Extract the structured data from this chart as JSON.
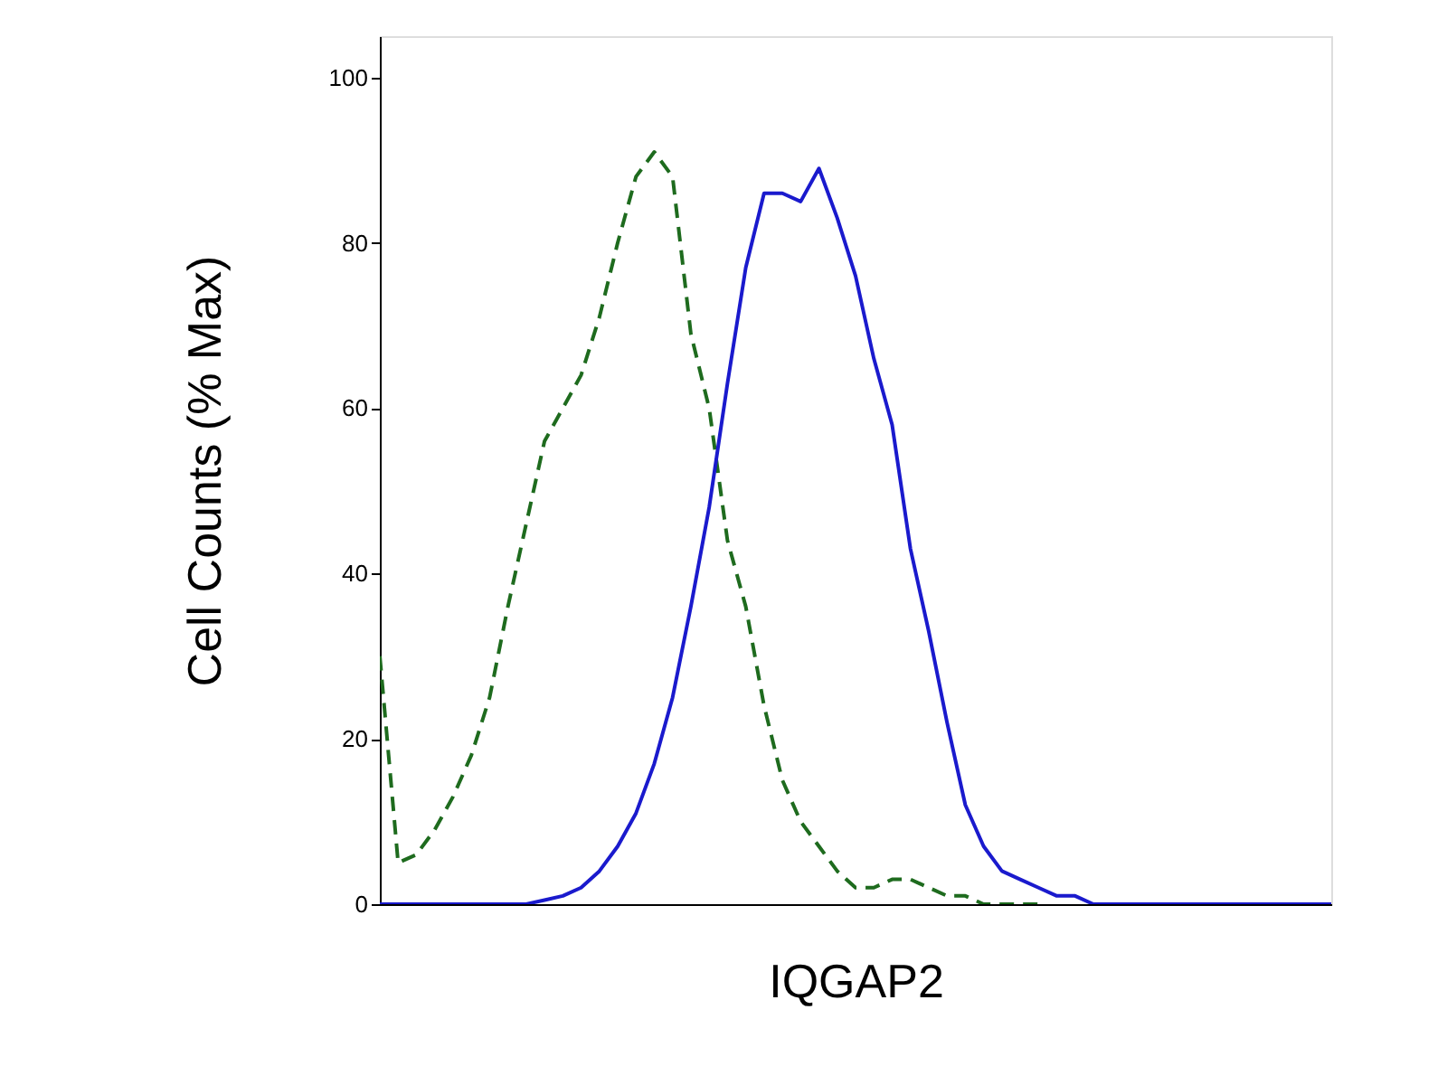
{
  "chart_data": {
    "type": "line",
    "xlabel": "IQGAP2",
    "ylabel": "Cell Counts (% Max)",
    "categories": [
      null,
      null,
      null,
      null,
      null,
      null,
      null,
      null,
      null,
      null,
      null,
      null,
      null,
      null,
      null,
      null,
      null,
      null,
      null,
      null,
      null,
      null,
      null,
      null,
      null,
      null,
      null,
      null,
      null,
      null,
      null,
      null,
      null,
      null,
      null,
      null,
      null,
      null,
      null,
      null,
      null,
      null,
      null,
      null,
      null,
      null,
      null,
      null,
      null,
      null,
      null,
      null,
      null
    ],
    "series": [
      {
        "color": "#1e6b1e",
        "line_style": "dashed",
        "values": [
          30,
          5,
          6,
          9,
          13,
          18,
          25,
          36,
          46,
          56,
          60,
          64,
          71,
          80,
          88,
          91,
          88,
          69,
          60,
          44,
          36,
          24,
          15,
          10,
          7,
          4,
          2,
          2,
          3,
          3,
          2,
          1,
          1,
          0,
          0,
          0,
          0,
          null,
          null,
          null,
          null,
          null,
          null,
          null,
          null,
          null,
          null,
          null,
          null,
          null,
          null,
          null,
          null
        ]
      },
      {
        "color": "#1a1acd",
        "line_style": "solid",
        "values": [
          0,
          0,
          0,
          0,
          0,
          0,
          0,
          0,
          0,
          0.5,
          1,
          2,
          4,
          7,
          11,
          17,
          25,
          36,
          48,
          63,
          77,
          86,
          86,
          85,
          89,
          83,
          76,
          66,
          58,
          43,
          33,
          22,
          12,
          7,
          4,
          3,
          2,
          1,
          1,
          0,
          0,
          0,
          0,
          0,
          0,
          0,
          0,
          0,
          0,
          0,
          0,
          0,
          0
        ]
      }
    ],
    "ylim": [
      0,
      105
    ],
    "yticks": [
      0,
      20,
      40,
      60,
      80,
      100
    ],
    "tick_labels": "y",
    "marker": "none"
  }
}
